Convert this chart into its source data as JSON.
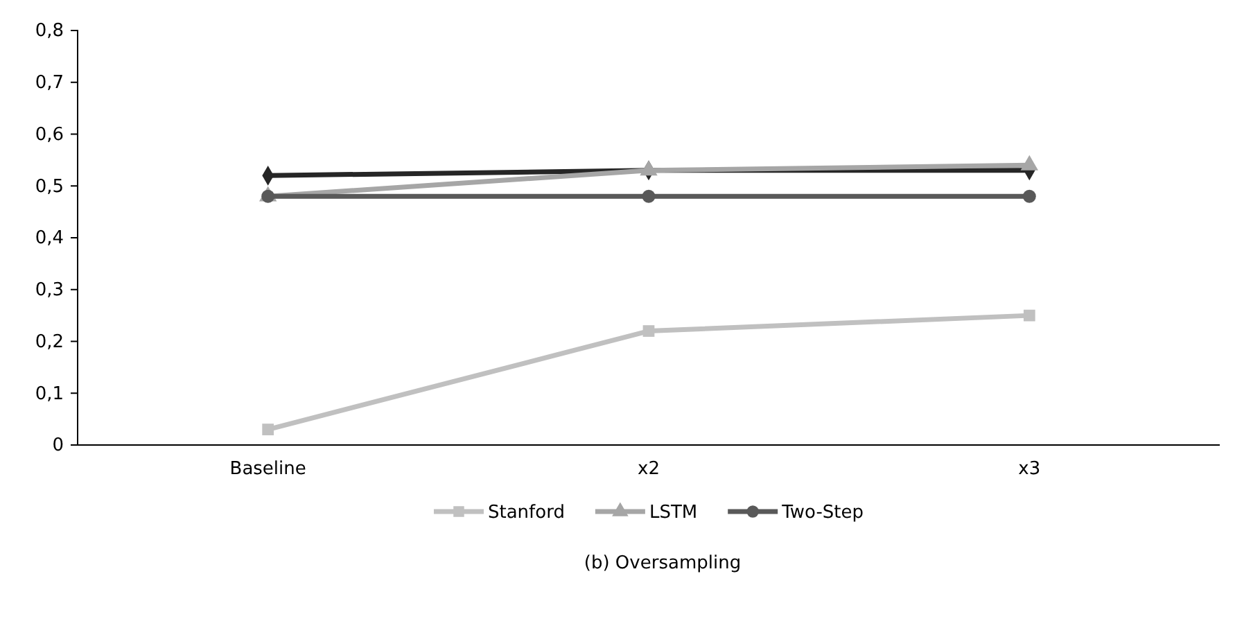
{
  "chart_data": {
    "type": "line",
    "title": "(b) Oversampling",
    "categories": [
      "Baseline",
      "x2",
      "x3"
    ],
    "series": [
      {
        "name": "Stanford",
        "color": "#c0c0c0",
        "marker": "square",
        "values": [
          0.03,
          0.22,
          0.25
        ]
      },
      {
        "color": "#262626",
        "marker": "diamond",
        "values": [
          0.52,
          0.53,
          0.53
        ]
      },
      {
        "name": "LSTM",
        "color": "#a6a6a6",
        "marker": "triangle",
        "values": [
          0.48,
          0.53,
          0.54
        ]
      },
      {
        "name": "Two-Step",
        "color": "#595959",
        "marker": "circle",
        "values": [
          0.48,
          0.48,
          0.48
        ]
      }
    ],
    "ylim": [
      0,
      0.8
    ],
    "yticks": [
      0,
      {
        "value": 0.1,
        "label": "0,1"
      },
      {
        "value": 0.2,
        "label": "0,2"
      },
      {
        "value": 0.3,
        "label": "0,3"
      },
      {
        "value": 0.4,
        "label": "0,4"
      },
      {
        "value": 0.5,
        "label": "0,5"
      },
      {
        "value": 0.6,
        "label": "0,6"
      },
      {
        "value": 0.7,
        "label": "0,7"
      },
      {
        "value": 0.8,
        "label": "0,8"
      }
    ],
    "grid": false,
    "legend": "bottom",
    "line_style": "solid"
  }
}
